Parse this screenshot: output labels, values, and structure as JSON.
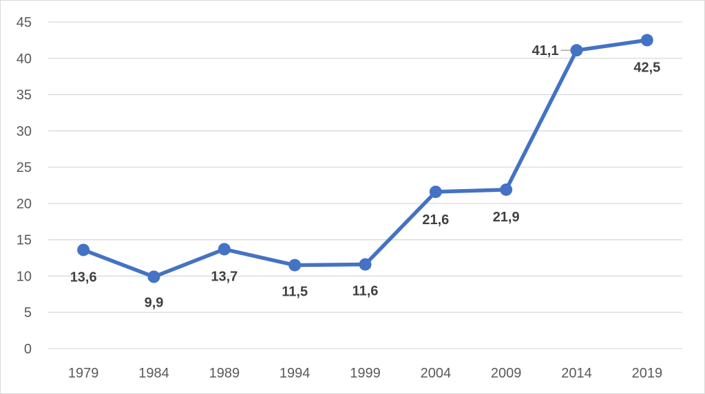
{
  "chart_data": {
    "type": "line",
    "categories": [
      "1979",
      "1984",
      "1989",
      "1994",
      "1999",
      "2004",
      "2009",
      "2014",
      "2019"
    ],
    "series": [
      {
        "values": [
          13.6,
          9.9,
          13.7,
          11.5,
          11.6,
          21.6,
          21.9,
          41.1,
          42.5
        ],
        "labels": [
          "13,6",
          "9,9",
          "13,7",
          "11,5",
          "11,6",
          "21,6",
          "21,9",
          "41,1",
          "42,5"
        ],
        "color": "#4472c4"
      }
    ],
    "y_ticks": [
      "0",
      "5",
      "10",
      "15",
      "20",
      "25",
      "30",
      "35",
      "40",
      "45"
    ],
    "ylim": [
      0,
      45
    ],
    "grid": true,
    "legend": "none",
    "colors": {
      "grid": "#d9d9d9",
      "axis_text": "#595959",
      "data_label": "#404040",
      "leader_line": "#a6a6a6"
    }
  }
}
